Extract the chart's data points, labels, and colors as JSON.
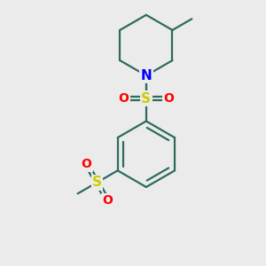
{
  "bg_color": "#ebebeb",
  "bond_color": "#2d6b5e",
  "sulfur_color": "#cccc00",
  "oxygen_color": "#ff0000",
  "nitrogen_color": "#0000ff",
  "line_width": 1.6,
  "figsize": [
    3.0,
    3.0
  ],
  "dpi": 100,
  "xlim": [
    0,
    10
  ],
  "ylim": [
    0,
    10
  ]
}
